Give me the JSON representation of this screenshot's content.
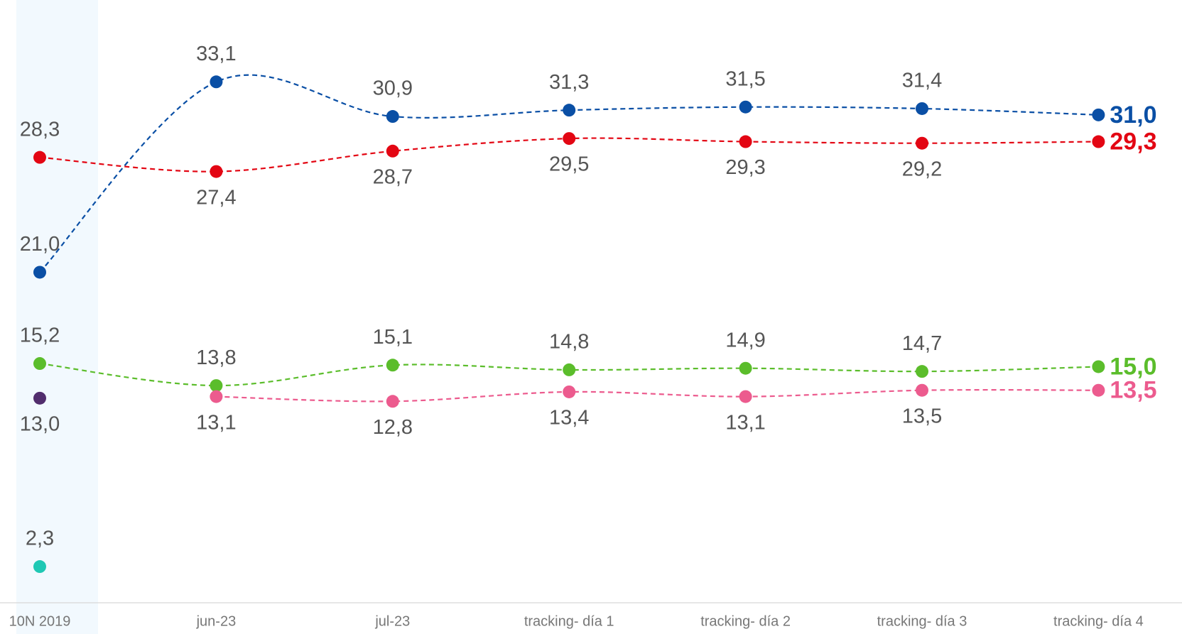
{
  "chart_data": {
    "type": "line",
    "categories": [
      "10N 2019",
      "jun-23",
      "jul-23",
      "tracking- día 1",
      "tracking- día 2",
      "tracking- día 3",
      "tracking- día 4"
    ],
    "ylim": [
      0,
      38.3
    ],
    "series": [
      {
        "color": "#0a4fa5",
        "values": [
          21.0,
          33.1,
          30.9,
          31.3,
          31.5,
          31.4,
          31.0
        ],
        "value_labels": [
          "21,0",
          "33,1",
          "30,9",
          "31,3",
          "31,5",
          "31,4",
          "31,0"
        ]
      },
      {
        "color": "#e30613",
        "values": [
          28.3,
          27.4,
          28.7,
          29.5,
          29.3,
          29.2,
          29.3
        ],
        "value_labels": [
          "28,3",
          "27,4",
          "28,7",
          "29,5",
          "29,3",
          "29,2",
          "29,3"
        ]
      },
      {
        "color": "#5bbd2b",
        "values": [
          15.2,
          13.8,
          15.1,
          14.8,
          14.9,
          14.7,
          15.0
        ],
        "value_labels": [
          "15,2",
          "13,8",
          "15,1",
          "14,8",
          "14,9",
          "14,7",
          "15,0"
        ]
      },
      {
        "color": "#ec5b8e",
        "values": [
          null,
          13.1,
          12.8,
          13.4,
          13.1,
          13.5,
          13.5
        ],
        "value_labels": [
          null,
          "13,1",
          "12,8",
          "13,4",
          "13,1",
          "13,5",
          "13,5"
        ]
      },
      {
        "color": "#512d6d",
        "values": [
          13.0,
          null,
          null,
          null,
          null,
          null,
          null
        ],
        "value_labels": [
          "13,0",
          null,
          null,
          null,
          null,
          null,
          null
        ]
      },
      {
        "color": "#1fc8b4",
        "values": [
          2.3,
          null,
          null,
          null,
          null,
          null,
          null
        ],
        "value_labels": [
          "2,3",
          null,
          null,
          null,
          null,
          null,
          null
        ]
      }
    ]
  }
}
